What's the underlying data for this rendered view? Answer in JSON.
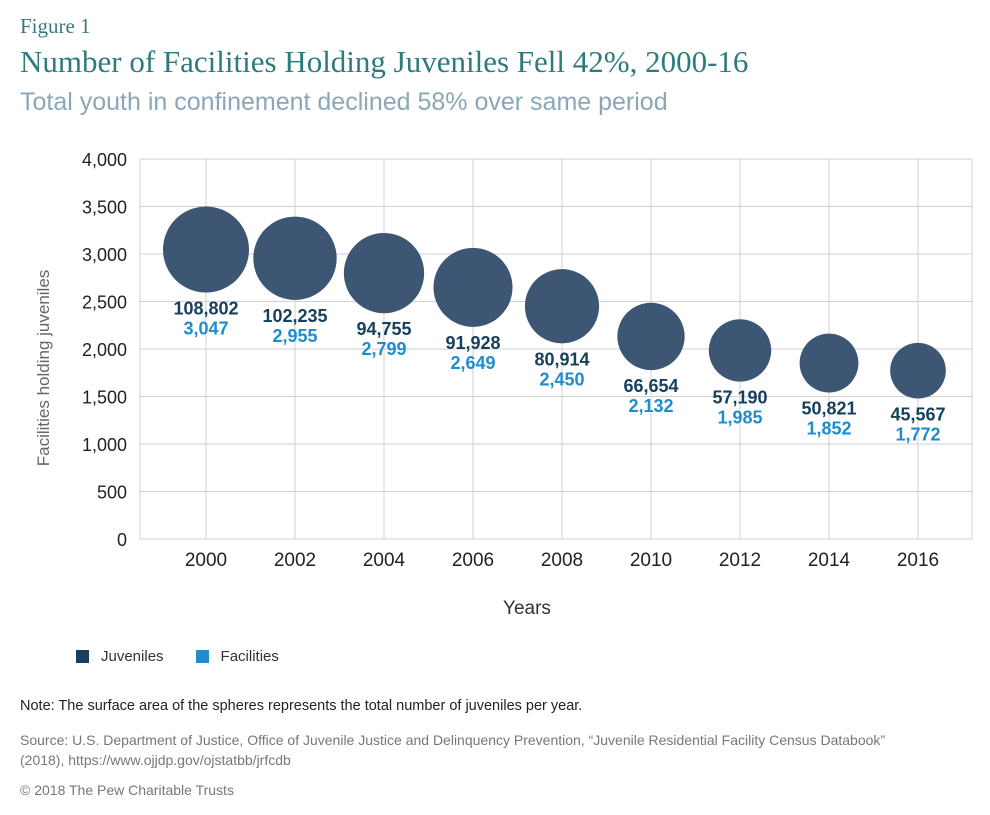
{
  "figure_label": "Figure 1",
  "title": "Number of Facilities Holding Juveniles Fell 42%, 2000-16",
  "subtitle": "Total youth in confinement declined 58% over same period",
  "legend": {
    "juveniles_label": "Juveniles",
    "facilities_label": "Facilities"
  },
  "note": "Note: The surface area of the spheres represents the total number of juveniles per year.",
  "source_line1": "Source: U.S. Department of Justice, Office of Juvenile Justice and Delinquency Prevention, “Juvenile Residential Facility Census Databook”",
  "source_line2": "(2018), https://www.ojjdp.gov/ojstatbb/jrfcdb",
  "copyright": "© 2018 The Pew Charitable Trusts",
  "colors": {
    "bubble": "#3d5674",
    "juveniles": "#16405e",
    "facilities": "#1f8ccc",
    "grid": "#d0d0d0",
    "axis_text": "#222222"
  },
  "chart_data": {
    "type": "scatter",
    "xlabel": "Years",
    "ylabel": "Facilities holding juveniles",
    "ylim": [
      0,
      4000
    ],
    "yticks": [
      0,
      500,
      1000,
      1500,
      2000,
      2500,
      3000,
      3500,
      4000
    ],
    "ytick_labels": [
      "0",
      "500",
      "1,000",
      "1,500",
      "2,000",
      "2,500",
      "3,000",
      "3,500",
      "4,000"
    ],
    "categories": [
      "2000",
      "2002",
      "2004",
      "2006",
      "2008",
      "2010",
      "2012",
      "2014",
      "2016"
    ],
    "series": [
      {
        "name": "Facilities",
        "values": [
          3047,
          2955,
          2799,
          2649,
          2450,
          2132,
          1985,
          1852,
          1772
        ],
        "labels": [
          "3,047",
          "2,955",
          "2,799",
          "2,649",
          "2,450",
          "2,132",
          "1,985",
          "1,852",
          "1,772"
        ]
      },
      {
        "name": "Juveniles",
        "values": [
          108802,
          102235,
          94755,
          91928,
          80914,
          66654,
          57190,
          50821,
          45567
        ],
        "labels": [
          "108,802",
          "102,235",
          "94,755",
          "91,928",
          "80,914",
          "66,654",
          "57,190",
          "50,821",
          "45,567"
        ]
      }
    ],
    "grid": true,
    "legend_position": "bottom-left"
  }
}
